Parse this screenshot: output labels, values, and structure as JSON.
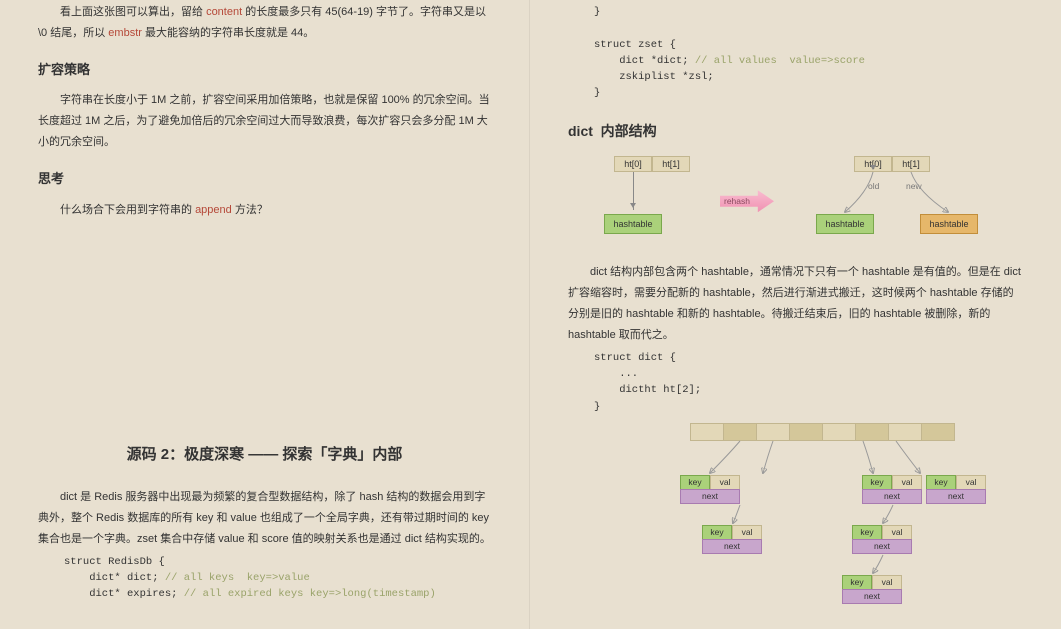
{
  "left": {
    "para1_a": "看上面这张图可以算出，留给 ",
    "para1_w": "content",
    "para1_b": " 的长度最多只有 45(64-19) 字节了。字符串又是以\\0 结尾，所以 ",
    "para1_w2": "embstr",
    "para1_c": " 最大能容纳的字符串长度就是 44。",
    "h1": "扩容策略",
    "para2": "字符串在长度小于 1M 之前，扩容空间采用加倍策略，也就是保留 100% 的冗余空间。当长度超过 1M 之后，为了避免加倍后的冗余空间过大而导致浪费，每次扩容只会多分配 1M 大小的冗余空间。",
    "h2": "思考",
    "para3_a": "什么场合下会用到字符串的 ",
    "para3_w": "append",
    "para3_b": " 方法？",
    "title": "源码 2：极度深寒 —— 探索「字典」内部",
    "para4": "dict 是 Redis 服务器中出现最为频繁的复合型数据结构，除了 hash 结构的数据会用到字典外，整个 Redis 数据库的所有 key 和 value 也组成了一个全局字典，还有带过期时间的 key 集合也是一个字典。zset 集合中存储 value 和 score 值的映射关系也是通过 dict 结构实现的。",
    "code1": "struct RedisDb {\n    dict* dict; // all keys  key=>value\n    dict* expires; // all expired keys key=>long(timestamp)"
  },
  "right": {
    "code_top": "}\n\nstruct zset {\n    dict *dict; // all values  value=>score\n    zskiplist *zsl;\n}",
    "section": "dict 内部结构",
    "dia1": {
      "ht0": "ht[0]",
      "ht1": "ht[1]",
      "hash": "hashtable",
      "rehash": "rehash",
      "old": "old",
      "new": "new"
    },
    "para5": "dict 结构内部包含两个 hashtable，通常情况下只有一个 hashtable 是有值的。但是在 dict 扩容缩容时，需要分配新的 hashtable，然后进行渐进式搬迁，这时候两个 hashtable 存储的分别是旧的 hashtable 和新的 hashtable。待搬迁结束后，旧的 hashtable 被删除，新的 hashtable 取而代之。",
    "code2": "struct dict {\n    ...\n    dictht ht[2];\n}",
    "dia2": {
      "key": "key",
      "val": "val",
      "next": "next"
    }
  }
}
